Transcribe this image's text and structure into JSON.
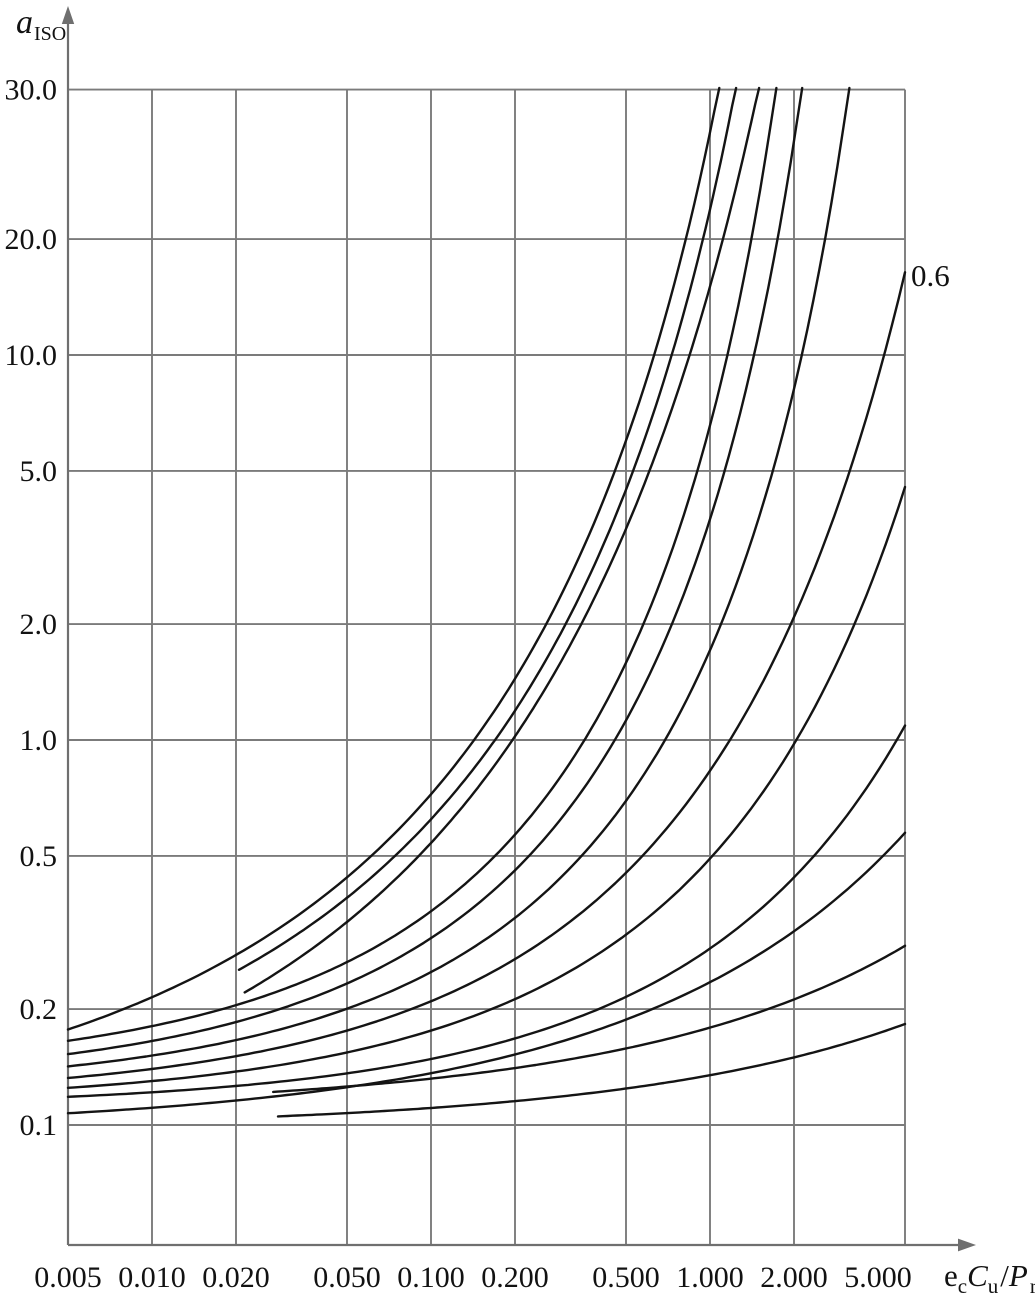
{
  "page": {
    "background": "#ffffff"
  },
  "colors": {
    "grid": "#7b7b7b",
    "axis": "#6f6f6f",
    "curve": "#141414",
    "text": "#121212"
  },
  "y_axis": {
    "label_main": "a",
    "label_sub": "ISO",
    "ticks": [
      {
        "label": "30.0",
        "value": 30,
        "pos": 48.9
      },
      {
        "label": "20.0",
        "value": 20,
        "pos": 20
      },
      {
        "label": "10.0",
        "value": 10,
        "pos": 10
      },
      {
        "label": "5.0",
        "value": 5,
        "pos": 5
      },
      {
        "label": "2.0",
        "value": 2,
        "pos": 2
      },
      {
        "label": "1.0",
        "value": 1,
        "pos": 1
      },
      {
        "label": "0.5",
        "value": 0.5,
        "pos": 0.5
      },
      {
        "label": "0.2",
        "value": 0.2,
        "pos": 0.2
      },
      {
        "label": "0.1",
        "value": 0.1,
        "pos": 0.1
      }
    ]
  },
  "x_axis": {
    "label_parts": {
      "e": "e",
      "e_sub": "c",
      "C": "C",
      "C_sub": "u",
      "slash": "/",
      "P": "P",
      "P_sub": "r"
    },
    "ticks": [
      {
        "label": "0.005",
        "value": 0.005
      },
      {
        "label": "0.010",
        "value": 0.01
      },
      {
        "label": "0.020",
        "value": 0.02
      },
      {
        "label": "0.050",
        "value": 0.05
      },
      {
        "label": "0.100",
        "value": 0.1
      },
      {
        "label": "0.200",
        "value": 0.2
      },
      {
        "label": "0.500",
        "value": 0.5
      },
      {
        "label": "1.000",
        "value": 1
      },
      {
        "label": "2.000",
        "value": 2
      },
      {
        "label": "5.000",
        "value": 5,
        "label_x": 878
      }
    ]
  },
  "chart_data": {
    "type": "line",
    "title": "",
    "xlabel": "ec Cu / Pr",
    "ylabel": "a ISO",
    "x_scale": "log",
    "y_scale": "log",
    "x_range": [
      0.005,
      5.0
    ],
    "y_axis_top_value": 48.9,
    "y_axis_bottom_value": 0.05,
    "grid": true,
    "x_tick_values": [
      0.005,
      0.01,
      0.02,
      0.05,
      0.1,
      0.2,
      0.5,
      1,
      2,
      5
    ],
    "y_tick_values": [
      30,
      20,
      10,
      5,
      2,
      1,
      0.5,
      0.2,
      0.1
    ],
    "curves": [
      {
        "name": "curve-1",
        "start": [
          0.005,
          0.177
        ],
        "end": [
          1.08,
          50
        ],
        "exit": "top",
        "label": "",
        "shape": {
          "p": 0.3333,
          "B": 6
        }
      },
      {
        "name": "curve-2",
        "start": [
          0.0205,
          0.253
        ],
        "end": [
          1.24,
          50
        ],
        "exit": "top",
        "label": "",
        "shape": {
          "p": 0.3333,
          "B": 6
        }
      },
      {
        "name": "curve-3",
        "start": [
          0.0215,
          0.221
        ],
        "end": [
          1.5,
          50
        ],
        "exit": "top",
        "label": "",
        "shape": {
          "p": 0.3333,
          "B": 8
        }
      },
      {
        "name": "curve-4",
        "start": [
          0.005,
          0.1655
        ],
        "end": [
          1.73,
          50
        ],
        "exit": "top",
        "label": "",
        "shape": {
          "p": 0.5,
          "B": 6
        }
      },
      {
        "name": "curve-5",
        "start": [
          0.005,
          0.1528
        ],
        "end": [
          2.14,
          50
        ],
        "exit": "top",
        "label": "",
        "shape": {
          "p": 0.5,
          "B": 6
        }
      },
      {
        "name": "curve-6",
        "start": [
          0.005,
          0.142
        ],
        "end": [
          3.16,
          50
        ],
        "exit": "top",
        "label": "",
        "shape": {
          "p": 0.5,
          "B": 6
        }
      },
      {
        "name": "curve-7",
        "start": [
          0.005,
          0.1325
        ],
        "end": [
          5.0,
          16.4
        ],
        "exit": "right",
        "label": "0.6",
        "shape": {
          "p": 0.5,
          "B": 12
        }
      },
      {
        "name": "curve-8",
        "start": [
          0.005,
          0.1249
        ],
        "end": [
          5.0,
          4.54
        ],
        "exit": "right",
        "label": "",
        "shape": {
          "p": 0.5,
          "B": 9
        }
      },
      {
        "name": "curve-9",
        "start": [
          0.005,
          0.1184
        ],
        "end": [
          5.0,
          1.09
        ],
        "exit": "right",
        "label": "",
        "shape": {
          "p": 0.5,
          "B": 9
        }
      },
      {
        "name": "curve-10",
        "start": [
          0.005,
          0.1073
        ],
        "end": [
          5.0,
          0.574
        ],
        "exit": "right",
        "label": "",
        "shape": {
          "p": 0.4,
          "B": 8
        }
      },
      {
        "name": "curve-11",
        "start": [
          0.0272,
          0.1219
        ],
        "end": [
          5.0,
          0.292
        ],
        "exit": "right",
        "label": "",
        "shape": {
          "p": 0.4,
          "B": 6
        }
      },
      {
        "name": "curve-12",
        "start": [
          0.0283,
          0.1053
        ],
        "end": [
          5.0,
          0.183
        ],
        "exit": "right",
        "label": "",
        "shape": {
          "p": 0.4,
          "B": 6
        }
      }
    ],
    "curve_label": {
      "text": "0.6"
    }
  }
}
